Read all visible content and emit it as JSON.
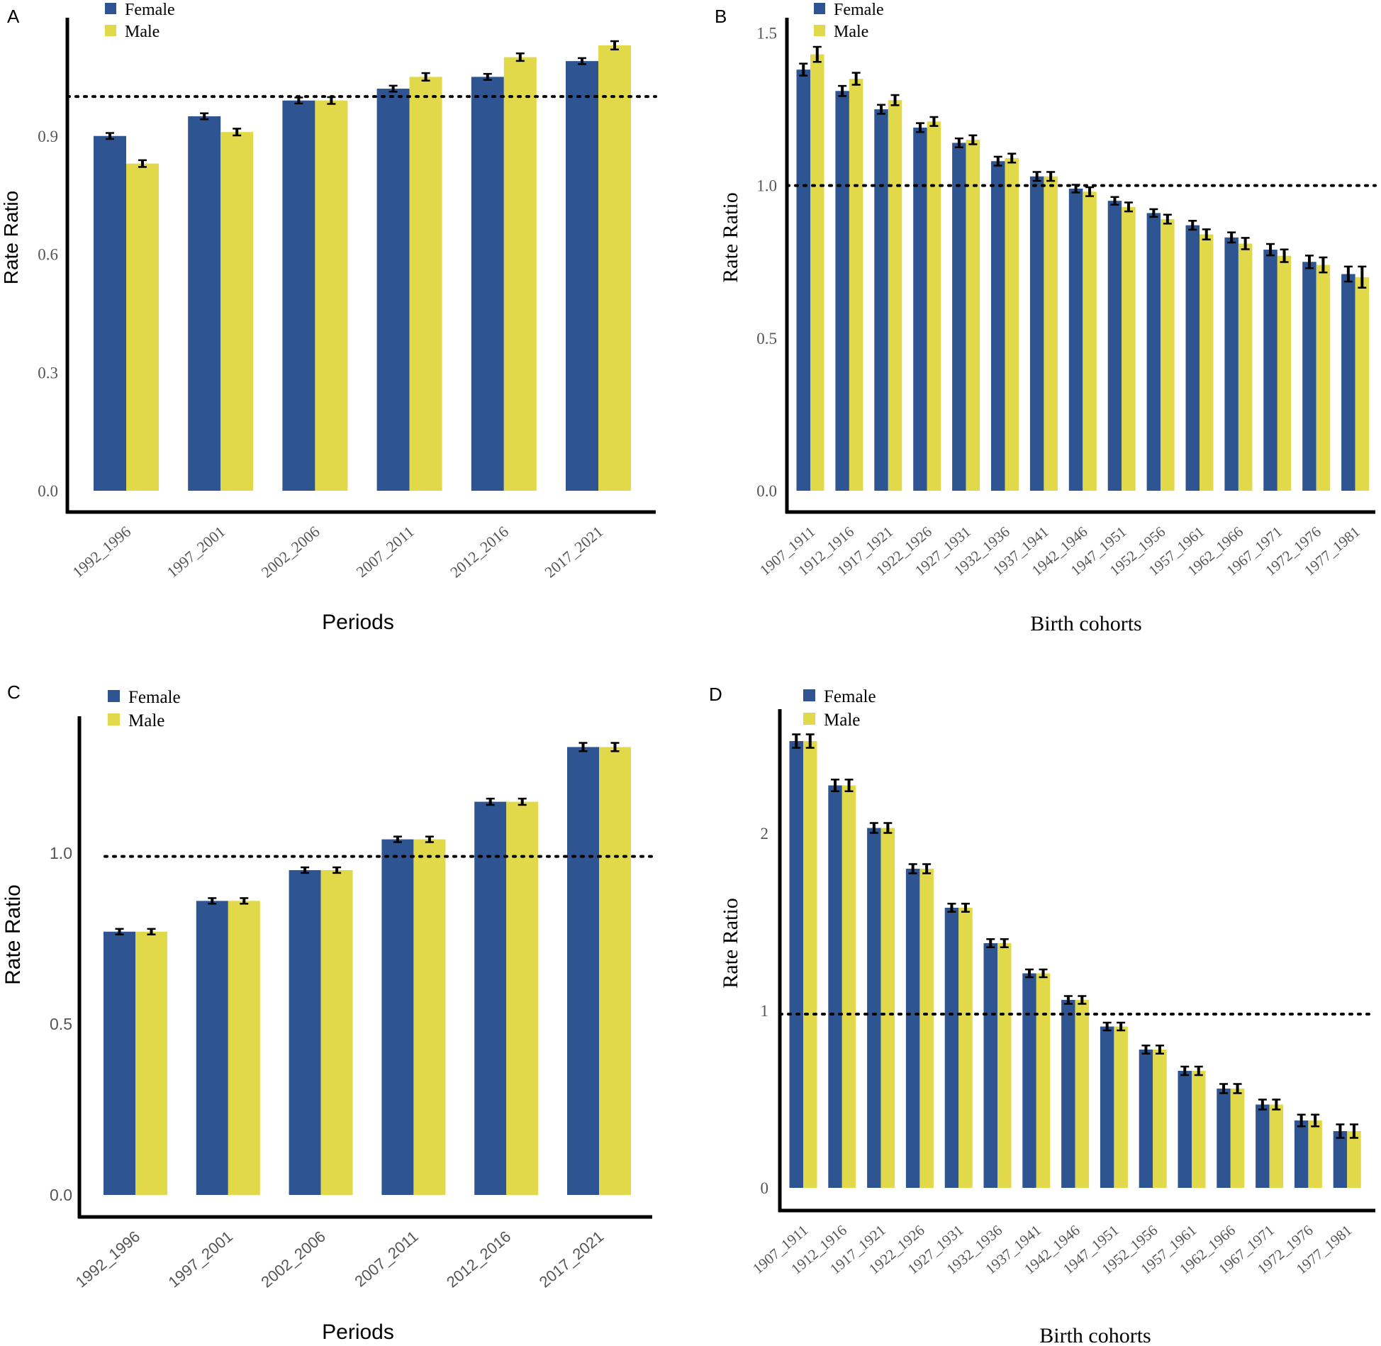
{
  "colors": {
    "female": "#2e5591",
    "male": "#e2d94a",
    "axis": "#000000",
    "tick_text": "#555555"
  },
  "chart_data": [
    {
      "panel": "A",
      "type": "bar",
      "title": "",
      "xlabel": "Periods",
      "ylabel": "Rate Ratio",
      "ylim": [
        0,
        1.2
      ],
      "yticks": [
        "0.0",
        "0.3",
        "0.6",
        "0.9"
      ],
      "ytick_values": [
        0,
        0.3,
        0.6,
        0.9
      ],
      "reference_line": 1.0,
      "legend": [
        "Female",
        "Male"
      ],
      "categories": [
        "1992_1996",
        "1997_2001",
        "2002_2006",
        "2007_2011",
        "2012_2016",
        "2017_2021"
      ],
      "series": [
        {
          "name": "Female",
          "values": [
            0.9,
            0.95,
            0.99,
            1.02,
            1.05,
            1.09
          ],
          "errors": [
            0.004,
            0.004,
            0.004,
            0.004,
            0.004,
            0.004
          ]
        },
        {
          "name": "Male",
          "values": [
            0.83,
            0.91,
            0.99,
            1.05,
            1.1,
            1.13
          ],
          "errors": [
            0.005,
            0.005,
            0.005,
            0.006,
            0.006,
            0.007
          ]
        }
      ]
    },
    {
      "panel": "B",
      "type": "bar",
      "title": "",
      "xlabel": "Birth cohorts",
      "ylabel": "Rate Ratio",
      "ylim": [
        0,
        1.55
      ],
      "yticks": [
        "0.0",
        "0.5",
        "1.0",
        "1.5"
      ],
      "ytick_values": [
        0,
        0.5,
        1.0,
        1.5
      ],
      "reference_line": 1.0,
      "legend": [
        "Female",
        "Male"
      ],
      "categories": [
        "1907_1911",
        "1912_1916",
        "1917_1921",
        "1922_1926",
        "1927_1931",
        "1932_1936",
        "1937_1941",
        "1942_1946",
        "1947_1951",
        "1952_1956",
        "1957_1961",
        "1962_1966",
        "1967_1971",
        "1972_1976",
        "1977_1981"
      ],
      "series": [
        {
          "name": "Female",
          "values": [
            1.38,
            1.31,
            1.25,
            1.19,
            1.14,
            1.08,
            1.03,
            0.99,
            0.95,
            0.91,
            0.87,
            0.83,
            0.79,
            0.75,
            0.71
          ],
          "errors": [
            0.015,
            0.012,
            0.01,
            0.01,
            0.01,
            0.01,
            0.01,
            0.008,
            0.008,
            0.008,
            0.01,
            0.012,
            0.014,
            0.016,
            0.02
          ]
        },
        {
          "name": "Male",
          "values": [
            1.43,
            1.35,
            1.28,
            1.21,
            1.15,
            1.09,
            1.03,
            0.98,
            0.93,
            0.89,
            0.84,
            0.81,
            0.77,
            0.74,
            0.7
          ],
          "errors": [
            0.02,
            0.015,
            0.012,
            0.01,
            0.01,
            0.01,
            0.01,
            0.01,
            0.01,
            0.01,
            0.012,
            0.014,
            0.016,
            0.02,
            0.03
          ]
        }
      ]
    },
    {
      "panel": "C",
      "type": "bar",
      "title": "",
      "xlabel": "Periods",
      "ylabel": "Rate Ratio",
      "ylim": [
        0,
        1.4
      ],
      "yticks": [
        "0.0",
        "0.5",
        "1.0"
      ],
      "ytick_values": [
        0,
        0.5,
        1.0
      ],
      "reference_line": 0.99,
      "legend": [
        "Female",
        "Male"
      ],
      "categories": [
        "1992_1996",
        "1997_2001",
        "2002_2006",
        "2007_2011",
        "2012_2016",
        "2017_2021"
      ],
      "series": [
        {
          "name": "Female",
          "values": [
            0.77,
            0.86,
            0.95,
            1.04,
            1.15,
            1.31
          ],
          "errors": [
            0.004,
            0.004,
            0.004,
            0.004,
            0.005,
            0.008
          ]
        },
        {
          "name": "Male",
          "values": [
            0.77,
            0.86,
            0.95,
            1.04,
            1.15,
            1.31
          ],
          "errors": [
            0.004,
            0.004,
            0.004,
            0.004,
            0.005,
            0.008
          ]
        }
      ]
    },
    {
      "panel": "D",
      "type": "bar",
      "title": "",
      "xlabel": "Birth cohorts",
      "ylabel": "Rate Ratio",
      "ylim": [
        0,
        2.7
      ],
      "yticks": [
        "0",
        "1",
        "2"
      ],
      "ytick_values": [
        0,
        1,
        2
      ],
      "reference_line": 0.98,
      "legend": [
        "Female",
        "Male"
      ],
      "categories": [
        "1907_1911",
        "1912_1916",
        "1917_1921",
        "1922_1926",
        "1927_1931",
        "1932_1936",
        "1937_1941",
        "1942_1946",
        "1947_1951",
        "1952_1956",
        "1957_1961",
        "1962_1966",
        "1967_1971",
        "1972_1976",
        "1977_1981"
      ],
      "series": [
        {
          "name": "Female",
          "values": [
            2.52,
            2.27,
            2.03,
            1.8,
            1.58,
            1.38,
            1.21,
            1.06,
            0.91,
            0.78,
            0.66,
            0.56,
            0.47,
            0.38,
            0.32
          ],
          "errors": [
            0.03,
            0.025,
            0.02,
            0.018,
            0.015,
            0.015,
            0.014,
            0.014,
            0.014,
            0.015,
            0.016,
            0.018,
            0.02,
            0.025,
            0.03
          ]
        },
        {
          "name": "Male",
          "values": [
            2.52,
            2.27,
            2.03,
            1.8,
            1.58,
            1.38,
            1.21,
            1.06,
            0.91,
            0.78,
            0.66,
            0.56,
            0.47,
            0.38,
            0.32
          ],
          "errors": [
            0.03,
            0.025,
            0.02,
            0.018,
            0.015,
            0.015,
            0.014,
            0.014,
            0.014,
            0.015,
            0.016,
            0.018,
            0.02,
            0.025,
            0.03
          ]
        }
      ]
    }
  ]
}
